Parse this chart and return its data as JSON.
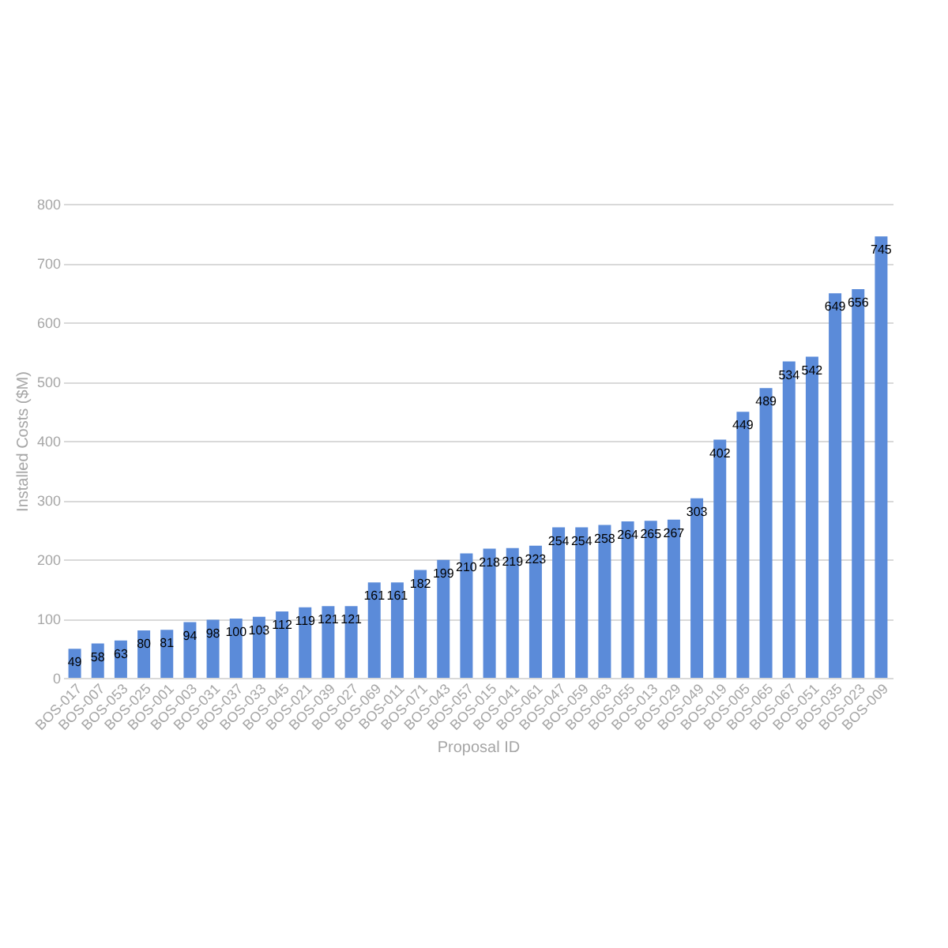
{
  "chart_data": {
    "type": "bar",
    "xlabel": "Proposal ID",
    "ylabel": "Installed Costs ($M)",
    "categories": [
      "BOS-017",
      "BOS-007",
      "BOS-053",
      "BOS-025",
      "BOS-001",
      "BOS-003",
      "BOS-031",
      "BOS-037",
      "BOS-033",
      "BOS-045",
      "BOS-021",
      "BOS-039",
      "BOS-027",
      "BOS-069",
      "BOS-011",
      "BOS-071",
      "BOS-043",
      "BOS-057",
      "BOS-015",
      "BOS-041",
      "BOS-061",
      "BOS-047",
      "BOS-059",
      "BOS-063",
      "BOS-055",
      "BOS-013",
      "BOS-029",
      "BOS-049",
      "BOS-019",
      "BOS-005",
      "BOS-065",
      "BOS-067",
      "BOS-051",
      "BOS-035",
      "BOS-023",
      "BOS-009"
    ],
    "values": [
      49,
      58,
      63,
      80,
      81,
      94,
      98,
      100,
      103,
      112,
      119,
      121,
      121,
      161,
      161,
      182,
      199,
      210,
      218,
      219,
      223,
      254,
      254,
      258,
      264,
      265,
      267,
      303,
      402,
      449,
      489,
      534,
      542,
      649,
      656,
      745
    ],
    "color": "#5b8bd9",
    "ylim": [
      0,
      800
    ],
    "yticks": [
      0,
      100,
      200,
      300,
      400,
      500,
      600,
      700,
      800
    ],
    "grid": "y",
    "data_labels": true
  }
}
